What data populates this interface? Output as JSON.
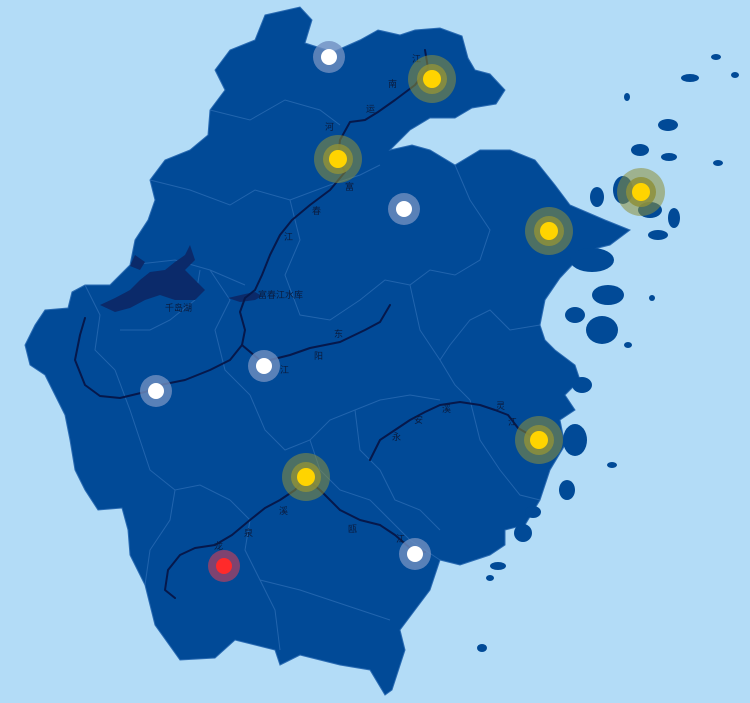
{
  "colors": {
    "sea": "#b3dcf7",
    "land": "#014a97",
    "land_border": "#2a6bb3",
    "river": "#06184b",
    "marker_yellow": "#ffd400",
    "marker_white": "#ffffff",
    "marker_red": "#ff2a2a",
    "halo_yellow": "#8d8f3b",
    "halo_white": "#6f8fc1"
  },
  "labels": {
    "canal_1": "江",
    "canal_2": "南",
    "canal_3": "运",
    "canal_4": "河",
    "river_a_1": "富",
    "river_a_2": "春",
    "river_a_3": "江",
    "reservoir": "富春江水库",
    "lake": "千岛湖",
    "river_b_1": "东",
    "river_b_2": "阳",
    "river_b_3": "江",
    "river_c_1": "灵",
    "river_c_2": "江",
    "river_c_3": "永",
    "river_c_4": "安",
    "river_c_5": "溪",
    "river_d_1": "龙",
    "river_d_2": "泉",
    "river_d_3": "溪",
    "river_d_4": "瓯",
    "river_d_5": "江"
  },
  "markers": [
    {
      "name": "marker-northwest-white",
      "status": "white"
    },
    {
      "name": "marker-northeast-yellow",
      "status": "yellow"
    },
    {
      "name": "marker-north-yellow",
      "status": "yellow"
    },
    {
      "name": "marker-center-north-white",
      "status": "white"
    },
    {
      "name": "marker-east-yellow",
      "status": "yellow"
    },
    {
      "name": "marker-zhoushan-yellow",
      "status": "yellow"
    },
    {
      "name": "marker-west-white",
      "status": "white"
    },
    {
      "name": "marker-center-white",
      "status": "white"
    },
    {
      "name": "marker-taizhou-yellow",
      "status": "yellow"
    },
    {
      "name": "marker-lishui-yellow",
      "status": "yellow"
    },
    {
      "name": "marker-wenzhou-white",
      "status": "white"
    },
    {
      "name": "marker-southwest-red",
      "status": "red"
    }
  ]
}
